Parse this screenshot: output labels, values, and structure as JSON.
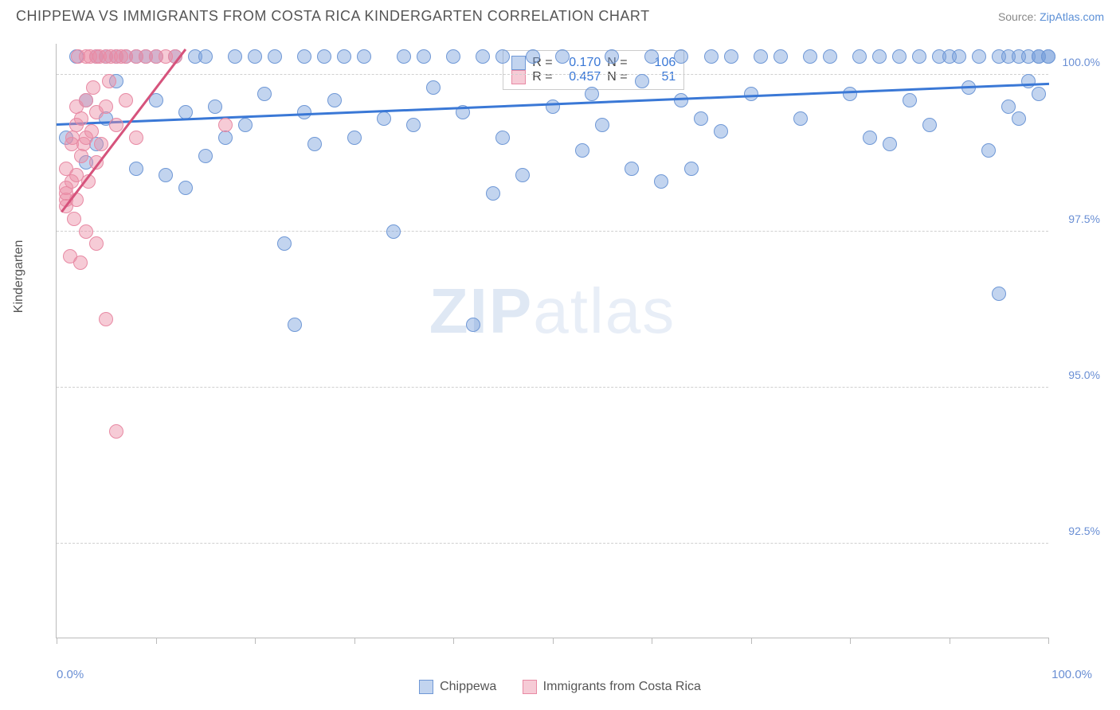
{
  "header": {
    "title": "CHIPPEWA VS IMMIGRANTS FROM COSTA RICA KINDERGARTEN CORRELATION CHART",
    "source_prefix": "Source: ",
    "source_link": "ZipAtlas.com"
  },
  "chart": {
    "type": "scatter",
    "ylabel": "Kindergarten",
    "xlim": [
      0,
      100
    ],
    "ylim": [
      91,
      100.5
    ],
    "y_ticks": [
      92.5,
      95.0,
      97.5,
      100.0
    ],
    "y_tick_labels": [
      "92.5%",
      "95.0%",
      "97.5%",
      "100.0%"
    ],
    "x_tick_positions": [
      0,
      10,
      20,
      30,
      40,
      50,
      60,
      70,
      80,
      90,
      100
    ],
    "x_label_min": "0.0%",
    "x_label_max": "100.0%",
    "grid_color": "#d0d0d0",
    "background_color": "#ffffff",
    "series": [
      {
        "name": "Chippewa",
        "fill": "rgba(120,160,220,0.45)",
        "stroke": "#6f98d6",
        "marker_radius": 9,
        "regression": {
          "x1": 0,
          "y1": 99.2,
          "x2": 100,
          "y2": 99.85,
          "color": "#3a78d6",
          "width": 2.5
        },
        "stats": {
          "R": "0.170",
          "N": "106"
        },
        "points": [
          [
            1,
            99.0
          ],
          [
            2,
            100.3
          ],
          [
            3,
            98.6
          ],
          [
            3,
            99.6
          ],
          [
            4,
            100.3
          ],
          [
            4,
            98.9
          ],
          [
            5,
            99.3
          ],
          [
            5,
            100.3
          ],
          [
            6,
            99.9
          ],
          [
            6,
            100.3
          ],
          [
            7,
            100.3
          ],
          [
            8,
            98.5
          ],
          [
            8,
            100.3
          ],
          [
            9,
            100.3
          ],
          [
            10,
            99.6
          ],
          [
            10,
            100.3
          ],
          [
            11,
            98.4
          ],
          [
            12,
            100.3
          ],
          [
            13,
            98.2
          ],
          [
            13,
            99.4
          ],
          [
            14,
            100.3
          ],
          [
            15,
            98.7
          ],
          [
            15,
            100.3
          ],
          [
            16,
            99.5
          ],
          [
            17,
            99.0
          ],
          [
            18,
            100.3
          ],
          [
            19,
            99.2
          ],
          [
            20,
            100.3
          ],
          [
            21,
            99.7
          ],
          [
            22,
            100.3
          ],
          [
            23,
            97.3
          ],
          [
            24,
            96.0
          ],
          [
            25,
            99.4
          ],
          [
            25,
            100.3
          ],
          [
            26,
            98.9
          ],
          [
            27,
            100.3
          ],
          [
            28,
            99.6
          ],
          [
            29,
            100.3
          ],
          [
            30,
            99.0
          ],
          [
            31,
            100.3
          ],
          [
            33,
            99.3
          ],
          [
            34,
            97.5
          ],
          [
            35,
            100.3
          ],
          [
            36,
            99.2
          ],
          [
            37,
            100.3
          ],
          [
            38,
            99.8
          ],
          [
            40,
            100.3
          ],
          [
            41,
            99.4
          ],
          [
            42,
            96.0
          ],
          [
            43,
            100.3
          ],
          [
            44,
            98.1
          ],
          [
            45,
            99.0
          ],
          [
            45,
            100.3
          ],
          [
            47,
            98.4
          ],
          [
            48,
            100.3
          ],
          [
            50,
            99.5
          ],
          [
            51,
            100.3
          ],
          [
            53,
            98.8
          ],
          [
            54,
            99.7
          ],
          [
            55,
            99.2
          ],
          [
            56,
            100.3
          ],
          [
            58,
            98.5
          ],
          [
            59,
            99.9
          ],
          [
            60,
            100.3
          ],
          [
            61,
            98.3
          ],
          [
            63,
            99.6
          ],
          [
            63,
            100.3
          ],
          [
            64,
            98.5
          ],
          [
            65,
            99.3
          ],
          [
            66,
            100.3
          ],
          [
            67,
            99.1
          ],
          [
            68,
            100.3
          ],
          [
            70,
            99.7
          ],
          [
            71,
            100.3
          ],
          [
            73,
            100.3
          ],
          [
            75,
            99.3
          ],
          [
            76,
            100.3
          ],
          [
            78,
            100.3
          ],
          [
            80,
            99.7
          ],
          [
            81,
            100.3
          ],
          [
            82,
            99.0
          ],
          [
            83,
            100.3
          ],
          [
            84,
            98.9
          ],
          [
            85,
            100.3
          ],
          [
            86,
            99.6
          ],
          [
            87,
            100.3
          ],
          [
            88,
            99.2
          ],
          [
            89,
            100.3
          ],
          [
            90,
            100.3
          ],
          [
            91,
            100.3
          ],
          [
            92,
            99.8
          ],
          [
            93,
            100.3
          ],
          [
            94,
            98.8
          ],
          [
            95,
            100.3
          ],
          [
            95,
            96.5
          ],
          [
            96,
            99.5
          ],
          [
            96,
            100.3
          ],
          [
            97,
            99.3
          ],
          [
            97,
            100.3
          ],
          [
            98,
            100.3
          ],
          [
            98,
            99.9
          ],
          [
            99,
            100.3
          ],
          [
            99,
            99.7
          ],
          [
            99,
            100.3
          ],
          [
            100,
            100.3
          ],
          [
            100,
            100.3
          ]
        ]
      },
      {
        "name": "Immigrants from Costa Rica",
        "fill": "rgba(235,140,165,0.45)",
        "stroke": "#e88aa4",
        "marker_radius": 9,
        "regression": {
          "x1": 0.5,
          "y1": 97.8,
          "x2": 13,
          "y2": 100.4,
          "color": "#d6537c",
          "width": 2.5
        },
        "stats": {
          "R": "0.457",
          "N": "51"
        },
        "points": [
          [
            1,
            97.9
          ],
          [
            1,
            98.0
          ],
          [
            1,
            98.1
          ],
          [
            1,
            98.2
          ],
          [
            1,
            98.5
          ],
          [
            1.4,
            97.1
          ],
          [
            1.5,
            98.3
          ],
          [
            1.5,
            98.9
          ],
          [
            1.6,
            99.0
          ],
          [
            1.8,
            97.7
          ],
          [
            2,
            98.0
          ],
          [
            2,
            98.4
          ],
          [
            2,
            99.5
          ],
          [
            2,
            99.2
          ],
          [
            2.2,
            100.3
          ],
          [
            2.4,
            97.0
          ],
          [
            2.5,
            98.7
          ],
          [
            2.5,
            99.3
          ],
          [
            2.7,
            98.9
          ],
          [
            3,
            97.5
          ],
          [
            3,
            99.0
          ],
          [
            3,
            99.6
          ],
          [
            3,
            100.3
          ],
          [
            3.2,
            98.3
          ],
          [
            3.4,
            100.3
          ],
          [
            3.5,
            99.1
          ],
          [
            3.7,
            99.8
          ],
          [
            4,
            97.3
          ],
          [
            4,
            98.6
          ],
          [
            4,
            99.4
          ],
          [
            4,
            100.3
          ],
          [
            4.3,
            100.3
          ],
          [
            4.5,
            98.9
          ],
          [
            5,
            96.1
          ],
          [
            5,
            99.5
          ],
          [
            5,
            100.3
          ],
          [
            5.3,
            99.9
          ],
          [
            5.5,
            100.3
          ],
          [
            6,
            99.2
          ],
          [
            6,
            100.3
          ],
          [
            6,
            94.3
          ],
          [
            6.5,
            100.3
          ],
          [
            7,
            99.6
          ],
          [
            7,
            100.3
          ],
          [
            8,
            100.3
          ],
          [
            8,
            99.0
          ],
          [
            9,
            100.3
          ],
          [
            10,
            100.3
          ],
          [
            11,
            100.3
          ],
          [
            12,
            100.3
          ],
          [
            17,
            99.2
          ]
        ]
      }
    ],
    "legend": {
      "swatch_border": "#888888"
    },
    "watermark": {
      "text_bold": "ZIP",
      "text_light": "atlas",
      "fontsize": 80
    },
    "stats_box": {
      "R_label": "R =",
      "N_label": "N =",
      "value_color_blue": "#3a78d6"
    }
  }
}
